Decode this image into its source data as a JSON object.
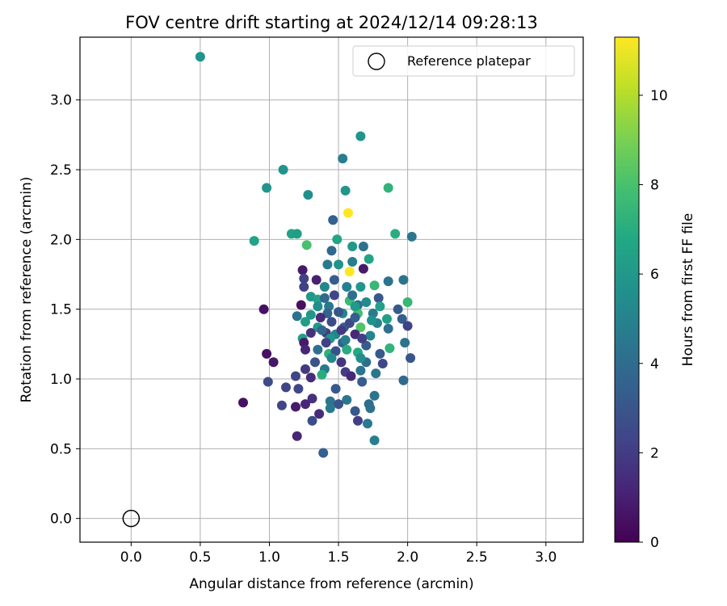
{
  "chart_data": {
    "type": "scatter",
    "title": "FOV centre drift starting at 2024/12/14 09:28:13",
    "xlabel": "Angular distance from reference (arcmin)",
    "ylabel": "Rotation from reference (arcmin)",
    "xlim": [
      -0.37,
      3.27
    ],
    "ylim": [
      -0.17,
      3.45
    ],
    "xticks": [
      "0.0",
      "0.5",
      "1.0",
      "1.5",
      "2.0",
      "2.5",
      "3.0"
    ],
    "yticks": [
      "0.0",
      "0.5",
      "1.0",
      "1.5",
      "2.0",
      "2.5",
      "3.0"
    ],
    "grid": true,
    "legend": {
      "placement": "top-right",
      "entries": [
        "Reference platepar"
      ]
    },
    "reference_point": {
      "x": 0.0,
      "y": 0.0,
      "marker": "open-circle"
    },
    "colorbar": {
      "label": "Hours from first FF file",
      "range": [
        0,
        11.3
      ],
      "ticks": [
        "0",
        "2",
        "4",
        "6",
        "8",
        "10"
      ],
      "colormap": "viridis"
    },
    "series": [
      {
        "points": [
          [
            0.5,
            3.31,
            5.8
          ],
          [
            1.66,
            2.74,
            5.8
          ],
          [
            1.53,
            2.58,
            4.8
          ],
          [
            1.1,
            2.5,
            5.8
          ],
          [
            0.98,
            2.37,
            5.8
          ],
          [
            1.86,
            2.37,
            7.3
          ],
          [
            1.28,
            2.32,
            5.6
          ],
          [
            1.55,
            2.35,
            5.8
          ],
          [
            1.57,
            2.19,
            11.3
          ],
          [
            1.46,
            2.14,
            3.5
          ],
          [
            0.89,
            1.99,
            6.5
          ],
          [
            1.16,
            2.04,
            6.5
          ],
          [
            1.2,
            2.04,
            6.3
          ],
          [
            1.27,
            1.96,
            8.0
          ],
          [
            1.49,
            2.0,
            6.6
          ],
          [
            1.91,
            2.04,
            7.0
          ],
          [
            2.03,
            2.02,
            4.5
          ],
          [
            1.45,
            1.92,
            3.8
          ],
          [
            1.6,
            1.95,
            6.0
          ],
          [
            1.68,
            1.95,
            4.2
          ],
          [
            1.24,
            1.78,
            0.8
          ],
          [
            1.42,
            1.82,
            4.6
          ],
          [
            1.5,
            1.82,
            5.7
          ],
          [
            1.6,
            1.84,
            4.8
          ],
          [
            1.72,
            1.86,
            6.6
          ],
          [
            1.58,
            1.77,
            11.3
          ],
          [
            1.68,
            1.79,
            0.8
          ],
          [
            1.25,
            1.72,
            2.2
          ],
          [
            1.34,
            1.71,
            1.0
          ],
          [
            1.47,
            1.71,
            3.3
          ],
          [
            1.86,
            1.7,
            4.3
          ],
          [
            1.97,
            1.71,
            4.3
          ],
          [
            1.76,
            1.67,
            7.5
          ],
          [
            1.66,
            1.66,
            5.9
          ],
          [
            1.56,
            1.66,
            4.9
          ],
          [
            1.4,
            1.66,
            5.2
          ],
          [
            1.25,
            1.66,
            2.2
          ],
          [
            1.3,
            1.59,
            6.0
          ],
          [
            1.35,
            1.57,
            6.5
          ],
          [
            1.58,
            1.56,
            7.6
          ],
          [
            1.79,
            1.58,
            3.1
          ],
          [
            2.0,
            1.55,
            7.5
          ],
          [
            1.23,
            1.53,
            0.5
          ],
          [
            1.43,
            1.52,
            4.5
          ],
          [
            1.64,
            1.53,
            4.2
          ],
          [
            1.8,
            1.52,
            6.4
          ],
          [
            0.96,
            1.5,
            0.5
          ],
          [
            1.93,
            1.5,
            3.2
          ],
          [
            1.75,
            1.47,
            4.7
          ],
          [
            1.64,
            1.47,
            7.9
          ],
          [
            1.53,
            1.47,
            5.1
          ],
          [
            1.42,
            1.47,
            3.6
          ],
          [
            1.3,
            1.46,
            5.9
          ],
          [
            1.2,
            1.45,
            4.3
          ],
          [
            1.96,
            1.43,
            3.3
          ],
          [
            1.85,
            1.43,
            6.4
          ],
          [
            1.26,
            1.41,
            6.3
          ],
          [
            1.78,
            1.4,
            5.0
          ],
          [
            1.66,
            1.37,
            8.2
          ],
          [
            1.54,
            1.37,
            3.4
          ],
          [
            1.35,
            1.37,
            6.0
          ],
          [
            2.0,
            1.38,
            2.2
          ],
          [
            1.86,
            1.36,
            4.2
          ],
          [
            1.3,
            1.33,
            1.6
          ],
          [
            1.41,
            1.33,
            2.0
          ],
          [
            1.48,
            1.32,
            5.1
          ],
          [
            1.62,
            1.32,
            1.3
          ],
          [
            1.73,
            1.31,
            5.1
          ],
          [
            1.24,
            1.29,
            6.4
          ],
          [
            1.44,
            1.29,
            5.8
          ],
          [
            1.25,
            1.26,
            0.8
          ],
          [
            1.53,
            1.26,
            3.5
          ],
          [
            1.7,
            1.24,
            3.3
          ],
          [
            1.87,
            1.22,
            7.3
          ],
          [
            1.98,
            1.26,
            4.3
          ],
          [
            1.26,
            1.21,
            1.2
          ],
          [
            1.35,
            1.21,
            4.2
          ],
          [
            1.56,
            1.21,
            7.0
          ],
          [
            1.64,
            1.19,
            6.8
          ],
          [
            1.8,
            1.18,
            3.2
          ],
          [
            0.98,
            1.18,
            0.5
          ],
          [
            1.43,
            1.18,
            7.2
          ],
          [
            2.02,
            1.15,
            3.0
          ],
          [
            1.03,
            1.12,
            0.7
          ],
          [
            1.33,
            1.12,
            2.9
          ],
          [
            1.52,
            1.12,
            1.8
          ],
          [
            1.7,
            1.12,
            4.0
          ],
          [
            1.82,
            1.11,
            2.4
          ],
          [
            1.26,
            1.07,
            1.9
          ],
          [
            1.4,
            1.07,
            4.6
          ],
          [
            1.55,
            1.05,
            2.0
          ],
          [
            1.66,
            1.06,
            4.4
          ],
          [
            1.77,
            1.04,
            4.4
          ],
          [
            1.38,
            1.03,
            7.0
          ],
          [
            1.19,
            1.02,
            2.3
          ],
          [
            1.59,
            1.02,
            1.3
          ],
          [
            1.3,
            1.01,
            1.4
          ],
          [
            0.99,
            0.98,
            2.6
          ],
          [
            1.67,
            0.98,
            3.3
          ],
          [
            1.97,
            0.99,
            3.9
          ],
          [
            1.12,
            0.94,
            2.3
          ],
          [
            1.21,
            0.93,
            2.4
          ],
          [
            1.48,
            0.93,
            3.1
          ],
          [
            1.76,
            0.88,
            4.3
          ],
          [
            1.31,
            0.86,
            1.6
          ],
          [
            1.44,
            0.84,
            4.4
          ],
          [
            1.56,
            0.85,
            4.5
          ],
          [
            1.26,
            0.82,
            1.2
          ],
          [
            1.5,
            0.82,
            2.9
          ],
          [
            1.72,
            0.82,
            4.0
          ],
          [
            0.81,
            0.83,
            0.5
          ],
          [
            1.09,
            0.81,
            2.3
          ],
          [
            1.19,
            0.8,
            0.8
          ],
          [
            1.44,
            0.79,
            4.6
          ],
          [
            1.73,
            0.79,
            4.2
          ],
          [
            1.62,
            0.77,
            3.1
          ],
          [
            1.36,
            0.75,
            1.4
          ],
          [
            1.31,
            0.7,
            2.6
          ],
          [
            1.64,
            0.7,
            2.1
          ],
          [
            1.71,
            0.68,
            4.6
          ],
          [
            1.2,
            0.59,
            1.2
          ],
          [
            1.76,
            0.56,
            4.8
          ],
          [
            1.39,
            0.47,
            3.5
          ],
          [
            1.37,
            1.44,
            1.4
          ],
          [
            1.41,
            1.26,
            2.2
          ],
          [
            1.5,
            1.48,
            3.0
          ],
          [
            1.45,
            1.41,
            2.6
          ],
          [
            1.52,
            1.35,
            1.9
          ],
          [
            1.58,
            1.4,
            2.5
          ],
          [
            1.62,
            1.44,
            3.3
          ],
          [
            1.67,
            1.29,
            2.1
          ],
          [
            1.48,
            1.2,
            2.8
          ],
          [
            1.38,
            1.35,
            3.7
          ],
          [
            1.6,
            1.6,
            4.1
          ],
          [
            1.7,
            1.55,
            5.4
          ],
          [
            1.55,
            1.28,
            4.8
          ],
          [
            1.45,
            1.15,
            5.3
          ],
          [
            1.35,
            1.52,
            5.5
          ],
          [
            1.62,
            1.52,
            6.1
          ],
          [
            1.74,
            1.42,
            5.7
          ],
          [
            1.4,
            1.58,
            3.9
          ],
          [
            1.66,
            1.15,
            5.5
          ],
          [
            1.47,
            1.6,
            2.4
          ]
        ]
      }
    ]
  }
}
